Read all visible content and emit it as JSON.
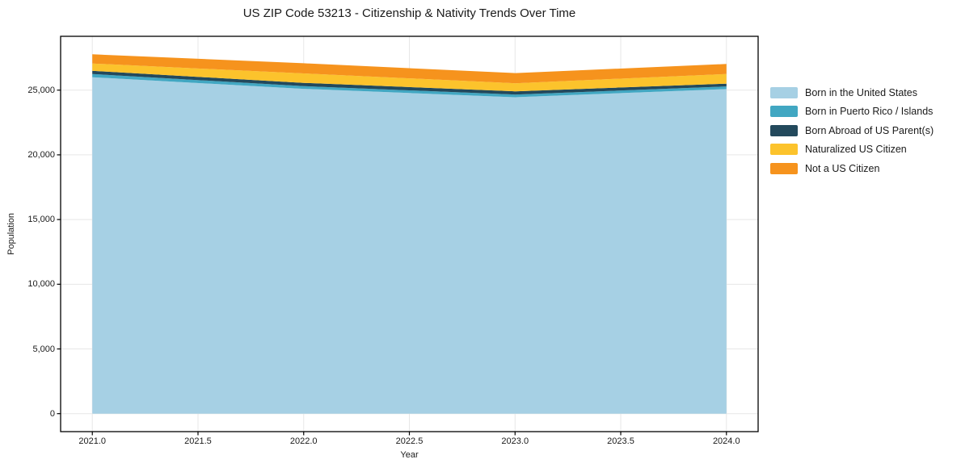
{
  "title": "US ZIP Code 53213 - Citizenship & Nativity Trends Over Time",
  "chart_data": {
    "type": "area",
    "stacked": true,
    "title": "US ZIP Code 53213 - Citizenship & Nativity Trends Over Time",
    "xlabel": "Year",
    "ylabel": "Population",
    "x": [
      2021,
      2022,
      2023,
      2024
    ],
    "series": [
      {
        "name": "Born in the United States",
        "color": "#a6d0e4",
        "values": [
          26000,
          25100,
          24450,
          25080
        ]
      },
      {
        "name": "Born in Puerto Rico / Islands",
        "color": "#41a7c2",
        "values": [
          250,
          210,
          210,
          210
        ]
      },
      {
        "name": "Born Abroad of US Parent(s)",
        "color": "#23495c",
        "values": [
          240,
          250,
          250,
          210
        ]
      },
      {
        "name": "Naturalized US Citizen",
        "color": "#fcc32c",
        "values": [
          570,
          730,
          620,
          750
        ]
      },
      {
        "name": "Not a US Citizen",
        "color": "#f6931d",
        "values": [
          710,
          790,
          790,
          770
        ]
      }
    ],
    "xlim": [
      2020.85,
      2024.15
    ],
    "ylim": [
      -1390,
      29160
    ],
    "xticks": [
      2021.0,
      2021.5,
      2022.0,
      2022.5,
      2023.0,
      2023.5,
      2024.0
    ],
    "xtick_labels": [
      "2021.0",
      "2021.5",
      "2022.0",
      "2022.5",
      "2023.0",
      "2023.5",
      "2024.0"
    ],
    "yticks": [
      0,
      5000,
      10000,
      15000,
      20000,
      25000
    ],
    "ytick_labels": [
      "0",
      "5,000",
      "10,000",
      "15,000",
      "20,000",
      "25,000"
    ],
    "grid": true,
    "legend_position": "right"
  },
  "colors": {
    "background": "#ffffff",
    "grid": "#e7e7e7",
    "spine": "#000000",
    "text": "#1a1a1a"
  }
}
